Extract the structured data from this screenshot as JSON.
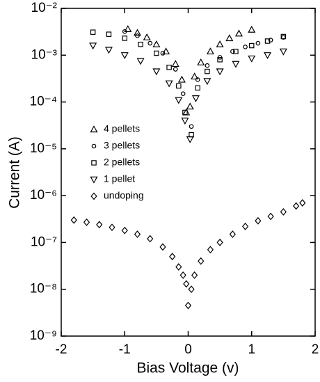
{
  "chart_data": {
    "type": "scatter",
    "x_label": "Bias Voltage (v)",
    "y_label": "Current (A)",
    "xlim": [
      -2,
      2
    ],
    "xticks": [
      -2,
      -1,
      0,
      1,
      2
    ],
    "ylim": [
      1e-09,
      0.01
    ],
    "y_scale": "log",
    "yticks": [
      {
        "value": 1e-09,
        "label": "10⁻⁹"
      },
      {
        "value": 1e-08,
        "label": "10⁻⁸"
      },
      {
        "value": 1e-07,
        "label": "10⁻⁷"
      },
      {
        "value": 1e-06,
        "label": "10⁻⁶"
      },
      {
        "value": 1e-05,
        "label": "10⁻⁵"
      },
      {
        "value": 0.0001,
        "label": "10⁻⁴"
      },
      {
        "value": 0.001,
        "label": "10⁻³"
      },
      {
        "value": 0.01,
        "label": "10⁻²"
      }
    ],
    "legend_loc": "center left",
    "series": [
      {
        "name": "4 pellets",
        "marker": "triangle-up",
        "color": "#000",
        "x": [
          -0.95,
          -0.8,
          -0.65,
          -0.5,
          -0.35,
          -0.2,
          -0.1,
          -0.03,
          0.03,
          0.1,
          0.2,
          0.35,
          0.5,
          0.65,
          0.8,
          1.0
        ],
        "values": [
          0.0036,
          0.003,
          0.0024,
          0.0017,
          0.0012,
          0.00065,
          0.0003,
          6e-05,
          8e-05,
          0.00035,
          0.0007,
          0.0012,
          0.0017,
          0.0023,
          0.0029,
          0.0035
        ]
      },
      {
        "name": "3 pellets",
        "marker": "circle",
        "color": "#000",
        "x": [
          -1.0,
          -0.8,
          -0.6,
          -0.4,
          -0.2,
          -0.08,
          0.05,
          0.15,
          0.3,
          0.5,
          0.7,
          0.9,
          1.1,
          1.3,
          1.5
        ],
        "values": [
          0.0032,
          0.0026,
          0.0018,
          0.0011,
          0.0005,
          0.00015,
          3e-05,
          0.0003,
          0.0006,
          0.0009,
          0.0012,
          0.0015,
          0.0018,
          0.0021,
          0.0024
        ]
      },
      {
        "name": "2 pellets",
        "marker": "square",
        "color": "#000",
        "x": [
          -1.5,
          -1.25,
          -1.0,
          -0.75,
          -0.5,
          -0.3,
          -0.15,
          -0.05,
          0.05,
          0.15,
          0.3,
          0.5,
          0.75,
          1.0,
          1.25,
          1.5
        ],
        "values": [
          0.0031,
          0.0028,
          0.0023,
          0.0017,
          0.0011,
          0.00055,
          0.00022,
          6e-05,
          2e-05,
          0.0002,
          0.00045,
          0.0008,
          0.0012,
          0.0016,
          0.002,
          0.0025
        ]
      },
      {
        "name": "1 pellet",
        "marker": "triangle-down",
        "color": "#000",
        "x": [
          -1.5,
          -1.25,
          -1.0,
          -0.75,
          -0.5,
          -0.3,
          -0.15,
          -0.05,
          0.03,
          0.12,
          0.3,
          0.5,
          0.75,
          1.0,
          1.25,
          1.5
        ],
        "values": [
          0.0016,
          0.0013,
          0.001,
          0.00075,
          0.00045,
          0.00025,
          0.00011,
          4e-05,
          1.6e-05,
          0.00012,
          0.00028,
          0.00045,
          0.00065,
          0.00085,
          0.001,
          0.0012
        ]
      },
      {
        "name": "undoping",
        "marker": "diamond",
        "color": "#000",
        "x": [
          -1.8,
          -1.6,
          -1.4,
          -1.2,
          -1.0,
          -0.8,
          -0.6,
          -0.4,
          -0.25,
          -0.15,
          -0.08,
          -0.03,
          0.0,
          0.05,
          0.1,
          0.2,
          0.35,
          0.5,
          0.7,
          0.9,
          1.1,
          1.3,
          1.5,
          1.7,
          1.8
        ],
        "values": [
          3e-07,
          2.7e-07,
          2.4e-07,
          2.1e-07,
          1.8e-07,
          1.5e-07,
          1.2e-07,
          8e-08,
          5e-08,
          3e-08,
          2e-08,
          1.3e-08,
          4.5e-09,
          1e-08,
          2e-08,
          4e-08,
          7e-08,
          1e-07,
          1.5e-07,
          2.2e-07,
          2.9e-07,
          3.6e-07,
          4.5e-07,
          6e-07,
          7e-07
        ]
      }
    ]
  }
}
